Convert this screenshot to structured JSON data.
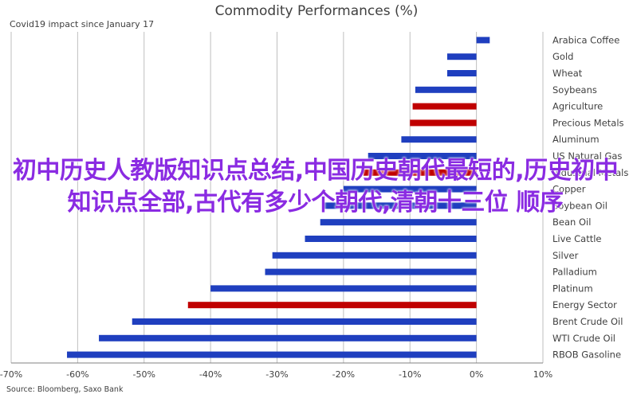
{
  "page": {
    "title": "Commodity Performances (%)",
    "subtitle": "Covid19 impact since January 17",
    "source": "Source: Bloomberg, Saxo Bank",
    "overlay_text": "初中历史人教版知识点总结,中国历史朝代最短的,历史初中知识点全部,古代有多少个朝代,清朝十三位 顺序"
  },
  "colors": {
    "positive_bar": "#1f3fbf",
    "negative_bar": "#1f3fbf",
    "highlight_bar": "#c00000",
    "grid": "#bfbfbf",
    "axis_text": "#404040",
    "overlay_text": "#8a2be2"
  },
  "chart_data": {
    "type": "bar",
    "orientation": "horizontal",
    "title": "Commodity Performances (%)",
    "subtitle": "Covid19 impact since January 17",
    "xlabel": "",
    "ylabel": "",
    "xlim": [
      -70,
      10
    ],
    "x_ticks": [
      -70,
      -60,
      -50,
      -40,
      -30,
      -20,
      -10,
      0,
      10
    ],
    "x_tick_labels": [
      "-70%",
      "-60%",
      "-50%",
      "-40%",
      "-30%",
      "-20%",
      "-10%",
      "0%",
      "10%"
    ],
    "grid": true,
    "categories": [
      "Arabica Coffee",
      "Gold",
      "Wheat",
      "Soybeans",
      "Agriculture",
      "Precious Metals",
      "Aluminum",
      "US Natural Gas",
      "Industrial Metals",
      "Copper",
      "Soybean Oil",
      "Bean Oil",
      "Live Cattle",
      "Silver",
      "Palladium",
      "Platinum",
      "Energy Sector",
      "Brent Crude Oil",
      "WTI Crude Oil",
      "RBOB Gasoline"
    ],
    "category_labels_visible": [
      "Arabica Coffee",
      "Gold",
      "Wheat",
      "Soybeans",
      "Agriculture",
      "Precious Metals",
      "Aluminum",
      "US Natural Gas",
      "Industrial Metals",
      "Copper",
      "Soybean Oil",
      "Bean Oil",
      "Live Cattle",
      "Silver",
      "Palladium",
      "Platinum",
      "Energy Sector",
      "Brent Crude Oil",
      "WTI Crude Oil",
      "RBOB Gasoline"
    ],
    "values": [
      2,
      -4.4,
      -4.4,
      -9.2,
      -9.6,
      -10,
      -11.3,
      -16.3,
      -17,
      -20,
      -23,
      -23.5,
      -25.8,
      -30.7,
      -31.8,
      -40,
      -43.4,
      -51.8,
      -56.8,
      -61.6
    ],
    "highlight": [
      false,
      false,
      false,
      false,
      true,
      true,
      false,
      false,
      true,
      false,
      false,
      false,
      false,
      false,
      false,
      false,
      true,
      false,
      false,
      false
    ]
  }
}
